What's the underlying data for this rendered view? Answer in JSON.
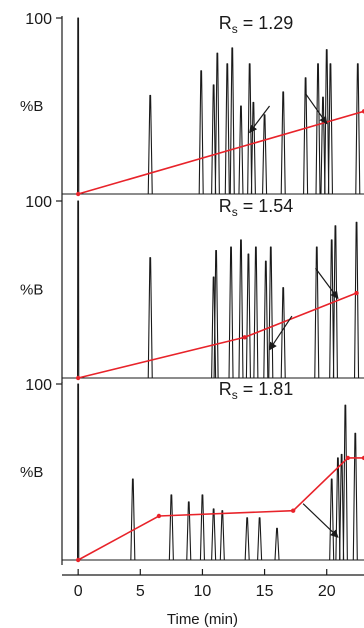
{
  "chart_data": {
    "type": "line",
    "xlabel": "Time (min)",
    "xlim": [
      -1.3,
      23
    ],
    "x_ticks": [
      "0",
      "5",
      "10",
      "15",
      "20"
    ],
    "x_tick_values": [
      0,
      5,
      10,
      15,
      20
    ],
    "colors": {
      "trace": "#1a1a1a",
      "gradient": "#e8232a",
      "axis": "#1a1a1a"
    },
    "panels": [
      {
        "ytick_top": "100",
        "ylabel": "%B",
        "ylim": [
          0,
          100
        ],
        "resolution": {
          "prefix": "R",
          "subscript": "s",
          "value": "= 1.29"
        },
        "peaks": [
          {
            "t": 0.0,
            "h": 1.0
          },
          {
            "t": 5.8,
            "h": 0.56
          },
          {
            "t": 9.9,
            "h": 0.7
          },
          {
            "t": 10.9,
            "h": 0.62
          },
          {
            "t": 11.2,
            "h": 0.8
          },
          {
            "t": 12.0,
            "h": 0.74
          },
          {
            "t": 12.4,
            "h": 0.83
          },
          {
            "t": 13.1,
            "h": 0.5
          },
          {
            "t": 13.8,
            "h": 0.74
          },
          {
            "t": 14.1,
            "h": 0.52
          },
          {
            "t": 15.0,
            "h": 0.45
          },
          {
            "t": 16.5,
            "h": 0.58
          },
          {
            "t": 18.3,
            "h": 0.66
          },
          {
            "t": 19.3,
            "h": 0.74
          },
          {
            "t": 19.7,
            "h": 0.55
          },
          {
            "t": 20.0,
            "h": 0.82
          },
          {
            "t": 20.3,
            "h": 0.74
          },
          {
            "t": 22.5,
            "h": 0.74
          }
        ],
        "gradient": {
          "x": [
            0,
            23
          ],
          "y": [
            0,
            47
          ]
        },
        "arrows": [
          {
            "tail": [
              15.4,
              50
            ],
            "head": [
              13.8,
              35
            ]
          },
          {
            "tail": [
              18.3,
              57
            ],
            "head": [
              20.0,
              40
            ]
          }
        ]
      },
      {
        "ytick_top": "100",
        "ylabel": "%B",
        "ylim": [
          0,
          100
        ],
        "resolution": {
          "prefix": "R",
          "subscript": "s",
          "value": "= 1.54"
        },
        "peaks": [
          {
            "t": 0.0,
            "h": 1.0
          },
          {
            "t": 5.8,
            "h": 0.68
          },
          {
            "t": 10.9,
            "h": 0.57
          },
          {
            "t": 11.1,
            "h": 0.72
          },
          {
            "t": 12.3,
            "h": 0.74
          },
          {
            "t": 13.1,
            "h": 0.78
          },
          {
            "t": 13.7,
            "h": 0.7
          },
          {
            "t": 14.3,
            "h": 0.74
          },
          {
            "t": 15.1,
            "h": 0.66
          },
          {
            "t": 15.5,
            "h": 0.74
          },
          {
            "t": 16.5,
            "h": 0.51
          },
          {
            "t": 19.2,
            "h": 0.74
          },
          {
            "t": 20.4,
            "h": 0.78
          },
          {
            "t": 20.7,
            "h": 0.86
          },
          {
            "t": 22.4,
            "h": 0.88
          }
        ],
        "gradient": {
          "x": [
            0,
            13.4,
            22.4
          ],
          "y": [
            0,
            23,
            48
          ]
        },
        "arrows": [
          {
            "tail": [
              17.2,
              35
            ],
            "head": [
              15.4,
              16
            ]
          },
          {
            "tail": [
              19.1,
              62
            ],
            "head": [
              20.9,
              45
            ]
          }
        ]
      },
      {
        "ytick_top": "100",
        "ylabel": "%B",
        "ylim": [
          0,
          100
        ],
        "resolution": {
          "prefix": "R",
          "subscript": "s",
          "value": "= 1.81"
        },
        "peaks": [
          {
            "t": 0.0,
            "h": 1.0
          },
          {
            "t": 4.4,
            "h": 0.46
          },
          {
            "t": 7.5,
            "h": 0.37
          },
          {
            "t": 8.9,
            "h": 0.33
          },
          {
            "t": 10.0,
            "h": 0.37
          },
          {
            "t": 10.9,
            "h": 0.29
          },
          {
            "t": 11.6,
            "h": 0.28
          },
          {
            "t": 13.6,
            "h": 0.24
          },
          {
            "t": 14.6,
            "h": 0.24
          },
          {
            "t": 16.0,
            "h": 0.18
          },
          {
            "t": 20.4,
            "h": 0.46
          },
          {
            "t": 20.9,
            "h": 0.58
          },
          {
            "t": 21.2,
            "h": 0.6
          },
          {
            "t": 21.5,
            "h": 0.88
          },
          {
            "t": 22.3,
            "h": 0.72
          }
        ],
        "gradient": {
          "x": [
            0,
            6.5,
            17.3,
            21.7,
            23
          ],
          "y": [
            0,
            25,
            28,
            58,
            58
          ]
        },
        "arrows": [
          {
            "tail": [
              18.1,
              32
            ],
            "head": [
              20.9,
              13
            ]
          }
        ]
      }
    ]
  }
}
